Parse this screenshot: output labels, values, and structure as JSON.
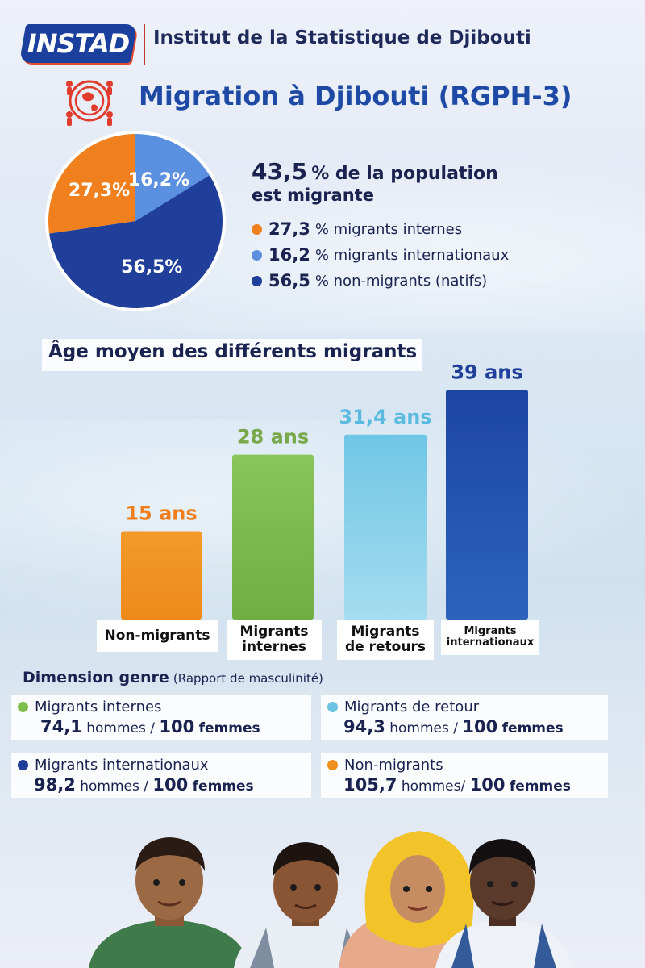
{
  "header": {
    "logo_text": "INSTAD",
    "institute_name": "Institut de la Statistique de Djibouti"
  },
  "title": "Migration à Djibouti (RGPH-3)",
  "pie": {
    "slices": [
      {
        "label": "27,3%",
        "value": 27.3,
        "color": "#f0801e"
      },
      {
        "label": "16,2%",
        "value": 16.2,
        "color": "#5b8fe0"
      },
      {
        "label": "56,5%",
        "value": 56.5,
        "color": "#1f3f9a"
      }
    ]
  },
  "summary": {
    "big_value": "43,5",
    "line1_rest": "% de la population",
    "line2": "est migrante",
    "legend": [
      {
        "value": "27,3",
        "text": "% migrants internes",
        "color": "#f0801e"
      },
      {
        "value": "16,2",
        "text": "% migrants internationaux",
        "color": "#5b8fe0"
      },
      {
        "value": "56,5",
        "text": "% non-migrants (natifs)",
        "color": "#1f3f9a"
      }
    ]
  },
  "chart_data": {
    "type": "bar",
    "title": "Âge moyen des différents migrants",
    "categories": [
      "Non-migrants",
      "Migrants internes",
      "Migrants de retours",
      "Migrants internationaux"
    ],
    "values": [
      15,
      28,
      31.4,
      39
    ],
    "value_labels": [
      "15 ans",
      "28 ans",
      "31,4 ans",
      "39 ans"
    ],
    "units": "ans",
    "colors": [
      "#f0901c",
      "#7fbd4e",
      "#6cc3e2",
      "#1d4aa6"
    ],
    "label_colors": [
      "#ef7d1b",
      "#79a84a",
      "#5bbbdf",
      "#1f3f9a"
    ],
    "ylim": [
      0,
      40
    ]
  },
  "bar_labels": {
    "cat1_line1": "Non-migrants",
    "cat2_line1": "Migrants",
    "cat2_line2": "internes",
    "cat3_line1": "Migrants",
    "cat3_line2": "de retours",
    "cat4_line1": "Migrants",
    "cat4_line2": "internationaux"
  },
  "genre": {
    "title": "Dimension genre",
    "subtitle": "(Rapport de masculinité)",
    "items": [
      {
        "category": "Migrants internes",
        "value": "74,1",
        "hommes": "hommes /",
        "ref": "100",
        "femmes": "femmes",
        "color": "#7fbd4e"
      },
      {
        "category": "Migrants de retour",
        "value": "94,3",
        "hommes": "hommes /",
        "ref": "100",
        "femmes": "femmes",
        "color": "#6cc3e2"
      },
      {
        "category": "Migrants internationaux",
        "value": "98,2",
        "hommes": "hommes /",
        "ref": "100",
        "femmes": "femmes",
        "color": "#1f3f9a"
      },
      {
        "category": "Non-migrants",
        "value": "105,7",
        "hommes": "hommes/",
        "ref": "100",
        "femmes": "femmes",
        "color": "#f0901c"
      }
    ]
  }
}
